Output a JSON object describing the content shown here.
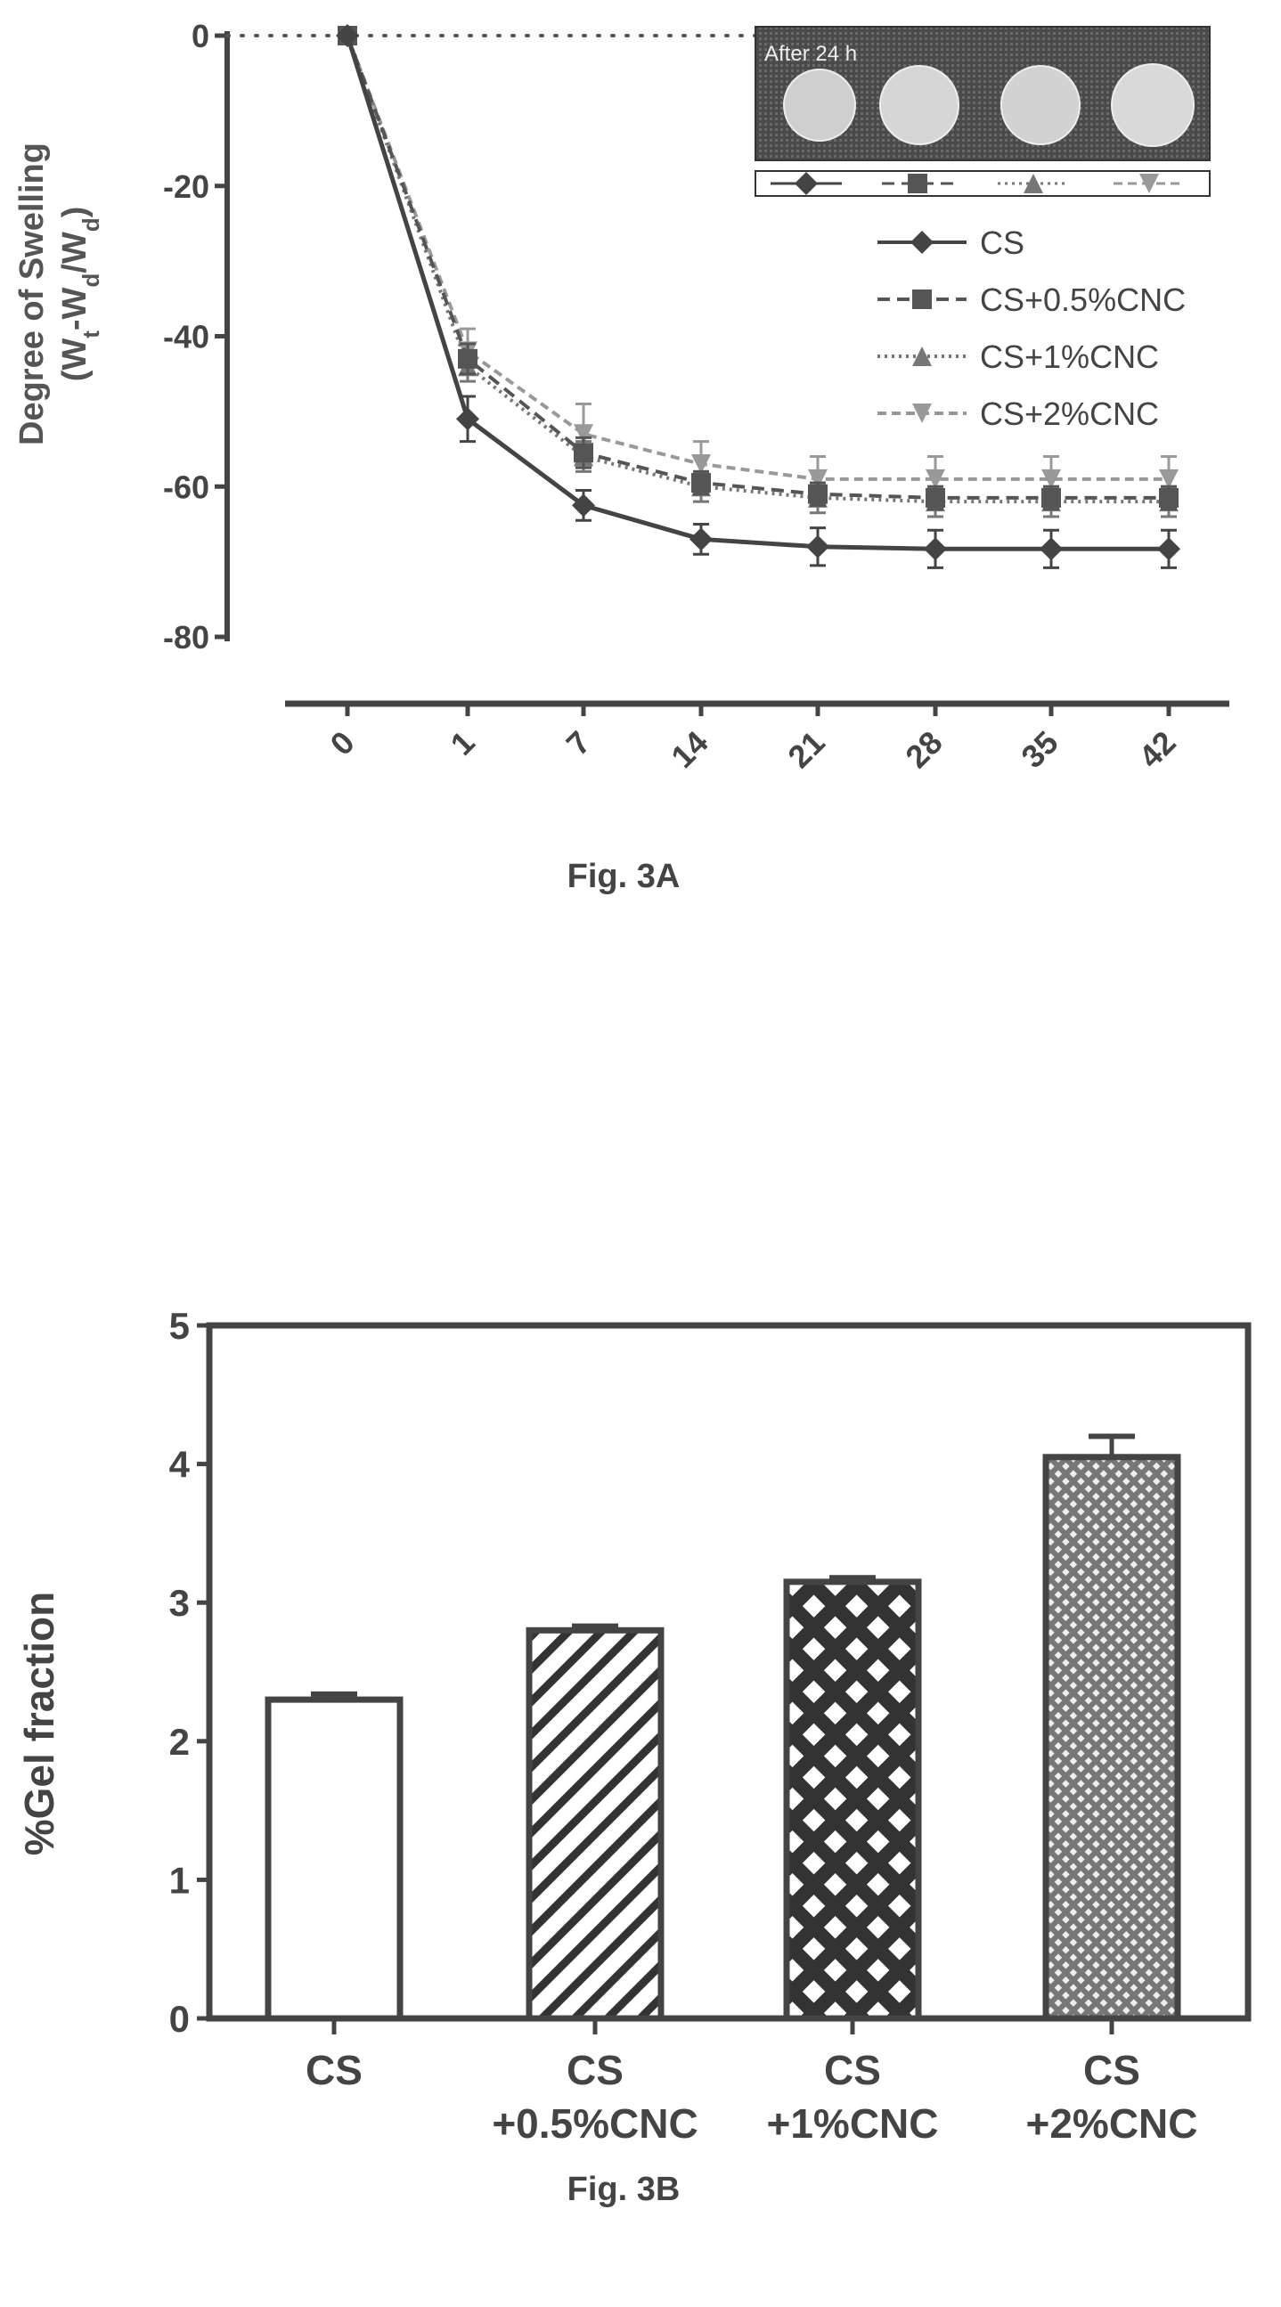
{
  "figures": [
    {
      "caption": "Fig. 3A"
    },
    {
      "caption": "Fig. 3B"
    }
  ],
  "chart_data": [
    {
      "type": "line",
      "title": "",
      "ylabel_line1": "Degree of Swelling",
      "ylabel_line2": "(W",
      "ylabel_sub1": "t",
      "ylabel_mid": "-W",
      "ylabel_sub2": "d",
      "ylabel_mid2": "/W",
      "ylabel_sub3": "d",
      "ylabel_end": ")",
      "xlabel": "",
      "ylim": [
        -80,
        0
      ],
      "yticks": [
        "0",
        "-20",
        "-40",
        "-60",
        "-80"
      ],
      "x": [
        "0",
        "1",
        "7",
        "14",
        "21",
        "28",
        "35",
        "42"
      ],
      "series": [
        {
          "name": "CS",
          "values": [
            0,
            -51,
            -62.5,
            -67,
            -68,
            -68.3,
            -68.3,
            -68.3
          ],
          "errors": [
            0,
            3,
            2,
            2,
            2.5,
            2.5,
            2.5,
            2.5
          ],
          "color": "#444444",
          "marker": "diamond"
        },
        {
          "name": "CS+0.5%CNC",
          "values": [
            0,
            -43,
            -55.5,
            -59.5,
            -61,
            -61.5,
            -61.5,
            -61.5
          ],
          "errors": [
            0,
            2,
            2,
            1.5,
            1.5,
            1.5,
            1.5,
            1.5
          ],
          "color": "#555555",
          "marker": "square"
        },
        {
          "name": "CS+1%CNC",
          "values": [
            0,
            -44,
            -56,
            -60,
            -61.5,
            -62,
            -62,
            -62
          ],
          "errors": [
            0,
            2,
            2,
            2,
            2,
            2,
            2,
            2
          ],
          "color": "#777777",
          "marker": "triangle"
        },
        {
          "name": "CS+2%CNC",
          "values": [
            0,
            -42,
            -53,
            -57,
            -59,
            -59,
            -59,
            -59
          ],
          "errors": [
            0,
            3,
            4,
            3,
            3,
            3,
            3,
            3
          ],
          "color": "#999999",
          "marker": "triangle-down"
        }
      ],
      "legend_position": "right",
      "inset_text": "After 24 h"
    },
    {
      "type": "bar",
      "title": "",
      "ylabel": "%Gel fraction",
      "xlabel": "",
      "ylim": [
        0,
        5
      ],
      "yticks": [
        "0",
        "1",
        "2",
        "3",
        "4",
        "5"
      ],
      "categories": [
        {
          "line1": "CS",
          "line2": ""
        },
        {
          "line1": "CS",
          "line2": "+0.5%CNC"
        },
        {
          "line1": "CS",
          "line2": "+1%CNC"
        },
        {
          "line1": "CS",
          "line2": "+2%CNC"
        }
      ],
      "values": [
        2.3,
        2.8,
        3.15,
        4.05
      ],
      "errors": [
        0.04,
        0.03,
        0.03,
        0.15
      ],
      "patterns": [
        "none",
        "diagonal",
        "cross",
        "fine-cross"
      ]
    }
  ]
}
